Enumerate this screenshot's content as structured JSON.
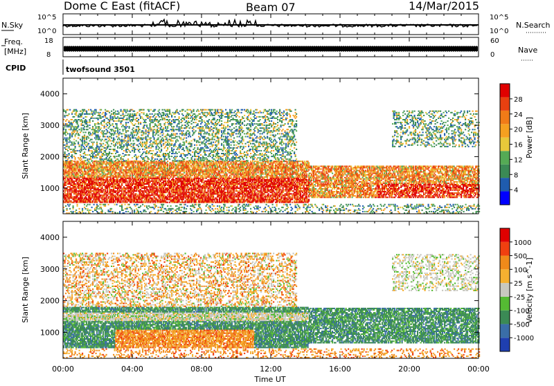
{
  "header": {
    "station": "Dome C East (fitACF)",
    "beam": "Beam 07",
    "date": "14/Mar/2015"
  },
  "strip_panels": {
    "nsky_label": "N.Sky",
    "nsky_ticks": [
      "10^5",
      "10^0"
    ],
    "nsearch_label": "N.Search",
    "nsearch_ticks": [
      "10^5",
      "10^0"
    ],
    "freq_label_1": "Freq.",
    "freq_label_2": "[MHz]",
    "freq_ticks": [
      "18",
      "8"
    ],
    "nave_label": "Nave",
    "nave_ticks": [
      "60",
      "0"
    ],
    "cpid_label": "CPID",
    "cpid_value": "twofsound 3501"
  },
  "chart_data": [
    {
      "type": "heatmap",
      "name": "power",
      "ylabel": "Slant Range [km]",
      "y_ticks": [
        "4000",
        "3000",
        "2000",
        "1000"
      ],
      "ylim": [
        180,
        4500
      ],
      "x_ticks": [
        "00:00",
        "04:00",
        "08:00",
        "12:00",
        "16:00",
        "20:00",
        "00:00"
      ],
      "colorbar_label": "Power [dB]",
      "colorbar_ticks": [
        "28",
        "24",
        "20",
        "16",
        "12",
        "8",
        "4"
      ],
      "colors": [
        "#0000ff",
        "#1f5cae",
        "#3b8a55",
        "#55aa55",
        "#e8c83a",
        "#f5a020",
        "#f07b18",
        "#e84010",
        "#e00000"
      ],
      "regions": [
        {
          "x": [
            0.0,
            14.2
          ],
          "y": [
            500,
            1800
          ],
          "level": "strong"
        },
        {
          "x": [
            14.2,
            24.0
          ],
          "y": [
            650,
            1650
          ],
          "level": "medium"
        },
        {
          "x": [
            0.0,
            13.5
          ],
          "y": [
            1800,
            3500
          ],
          "level": "weak"
        },
        {
          "x": [
            19.0,
            24.0
          ],
          "y": [
            2300,
            3500
          ],
          "level": "weak"
        },
        {
          "x": [
            0.0,
            24.0
          ],
          "y": [
            180,
            450
          ],
          "level": "weak"
        }
      ]
    },
    {
      "type": "heatmap",
      "name": "velocity",
      "ylabel": "Slant Range [km]",
      "y_ticks": [
        "4000",
        "3000",
        "2000",
        "1000"
      ],
      "ylim": [
        180,
        4500
      ],
      "x_ticks": [
        "00:00",
        "04:00",
        "08:00",
        "12:00",
        "16:00",
        "20:00",
        "00:00"
      ],
      "xlabel": "Time UT",
      "colorbar_label": "Velocity [m s^-1]",
      "colorbar_ticks": [
        "1000",
        "500",
        "100",
        "25",
        "-25",
        "-100",
        "-500",
        "-1000"
      ],
      "colors": [
        "#1f3fb0",
        "#3a6ea8",
        "#3b8a55",
        "#55bb33",
        "#c8c8c0",
        "#f5b030",
        "#f08a1a",
        "#f04010",
        "#e00000"
      ]
    }
  ],
  "xlabel": "Time UT"
}
